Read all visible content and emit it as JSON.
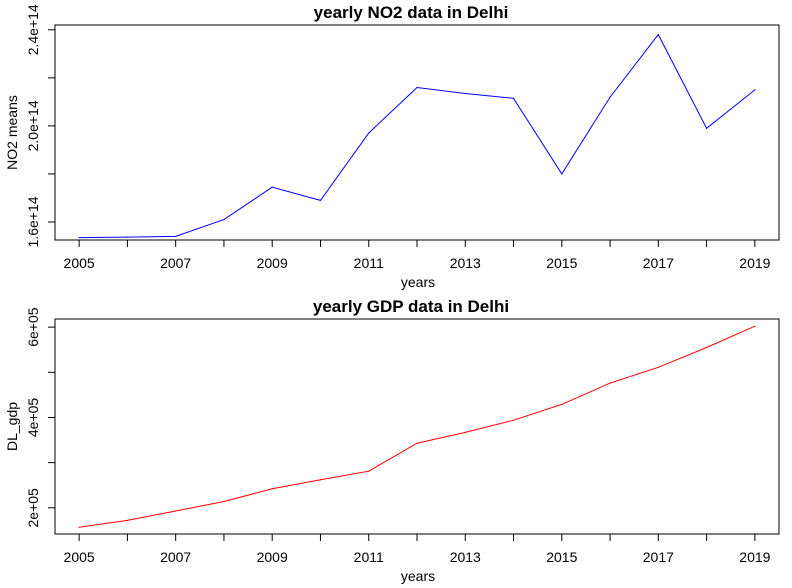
{
  "chart_data": [
    {
      "type": "line",
      "title": "yearly NO2 data in Delhi",
      "xlabel": "years",
      "ylabel": "NO2 means",
      "xlim": [
        2004.5,
        2019.5
      ],
      "ylim": [
        152500000000000.0,
        242000000000000.0
      ],
      "xticks": [
        2005,
        2006,
        2007,
        2008,
        2009,
        2010,
        2011,
        2012,
        2013,
        2014,
        2015,
        2016,
        2017,
        2018,
        2019
      ],
      "xtick_labels": [
        "2005",
        "",
        "2007",
        "",
        "2009",
        "",
        "2011",
        "",
        "2013",
        "",
        "2015",
        "",
        "2017",
        "",
        "2019"
      ],
      "yticks": [
        160000000000000.0,
        180000000000000.0,
        200000000000000.0,
        220000000000000.0,
        240000000000000.0
      ],
      "ytick_labels": [
        "1.6e+14",
        "",
        "2.0e+14",
        "",
        "2.4e+14"
      ],
      "color": "#0000ff",
      "x": [
        2005,
        2006,
        2007,
        2008,
        2009,
        2010,
        2011,
        2012,
        2013,
        2014,
        2015,
        2016,
        2017,
        2018,
        2019
      ],
      "y": [
        153500000000000.0,
        153700000000000.0,
        154000000000000.0,
        161000000000000.0,
        174500000000000.0,
        169000000000000.0,
        197000000000000.0,
        216000000000000.0,
        213500000000000.0,
        211500000000000.0,
        180000000000000.0,
        212000000000000.0,
        238000000000000.0,
        199000000000000.0,
        215000000000000.0
      ]
    },
    {
      "type": "line",
      "title": "yearly GDP data in Delhi",
      "xlabel": "years",
      "ylabel": "DL_gdp",
      "xlim": [
        2004.5,
        2019.5
      ],
      "ylim": [
        142000,
        618000
      ],
      "xticks": [
        2005,
        2006,
        2007,
        2008,
        2009,
        2010,
        2011,
        2012,
        2013,
        2014,
        2015,
        2016,
        2017,
        2018,
        2019
      ],
      "xtick_labels": [
        "2005",
        "",
        "2007",
        "",
        "2009",
        "",
        "2011",
        "",
        "2013",
        "",
        "2015",
        "",
        "2017",
        "",
        "2019"
      ],
      "yticks": [
        200000,
        300000,
        400000,
        500000,
        600000
      ],
      "ytick_labels": [
        "2e+05",
        "",
        "4e+05",
        "",
        "6e+05"
      ],
      "color": "#ff0000",
      "x": [
        2005,
        2006,
        2007,
        2008,
        2009,
        2010,
        2011,
        2012,
        2013,
        2014,
        2015,
        2016,
        2017,
        2018,
        2019
      ],
      "y": [
        157000,
        172000,
        193000,
        214000,
        242000,
        262000,
        281000,
        343000,
        367000,
        394000,
        429000,
        476000,
        511000,
        555000,
        602000
      ]
    }
  ]
}
